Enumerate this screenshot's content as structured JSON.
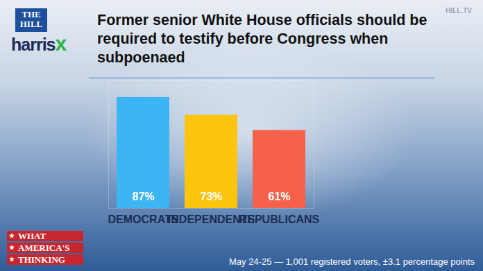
{
  "chart_data": {
    "type": "bar",
    "title": "Former senior White House officials should be required to testify before Congress when subpoenaed",
    "categories": [
      "DEMOCRATS",
      "INDEPENDENTS",
      "REPUBLICANS"
    ],
    "values": [
      87,
      73,
      61
    ],
    "value_labels": [
      "87%",
      "73%",
      "61%"
    ],
    "colors": [
      "#3db5f2",
      "#fdc40c",
      "#f6614a"
    ],
    "ylim": [
      0,
      100
    ],
    "data_labels": true,
    "tick_labels": "x",
    "grid": false,
    "caption": "May 24-25 — 1,001 registered voters, ±3.1 percentage points",
    "branding": {
      "outlet": [
        "THE",
        "HILL"
      ],
      "pollster": [
        "harris",
        "x"
      ],
      "channel": "HILL.TV",
      "series": [
        "WHAT",
        "AMERICA'S",
        "THINKING"
      ]
    }
  }
}
